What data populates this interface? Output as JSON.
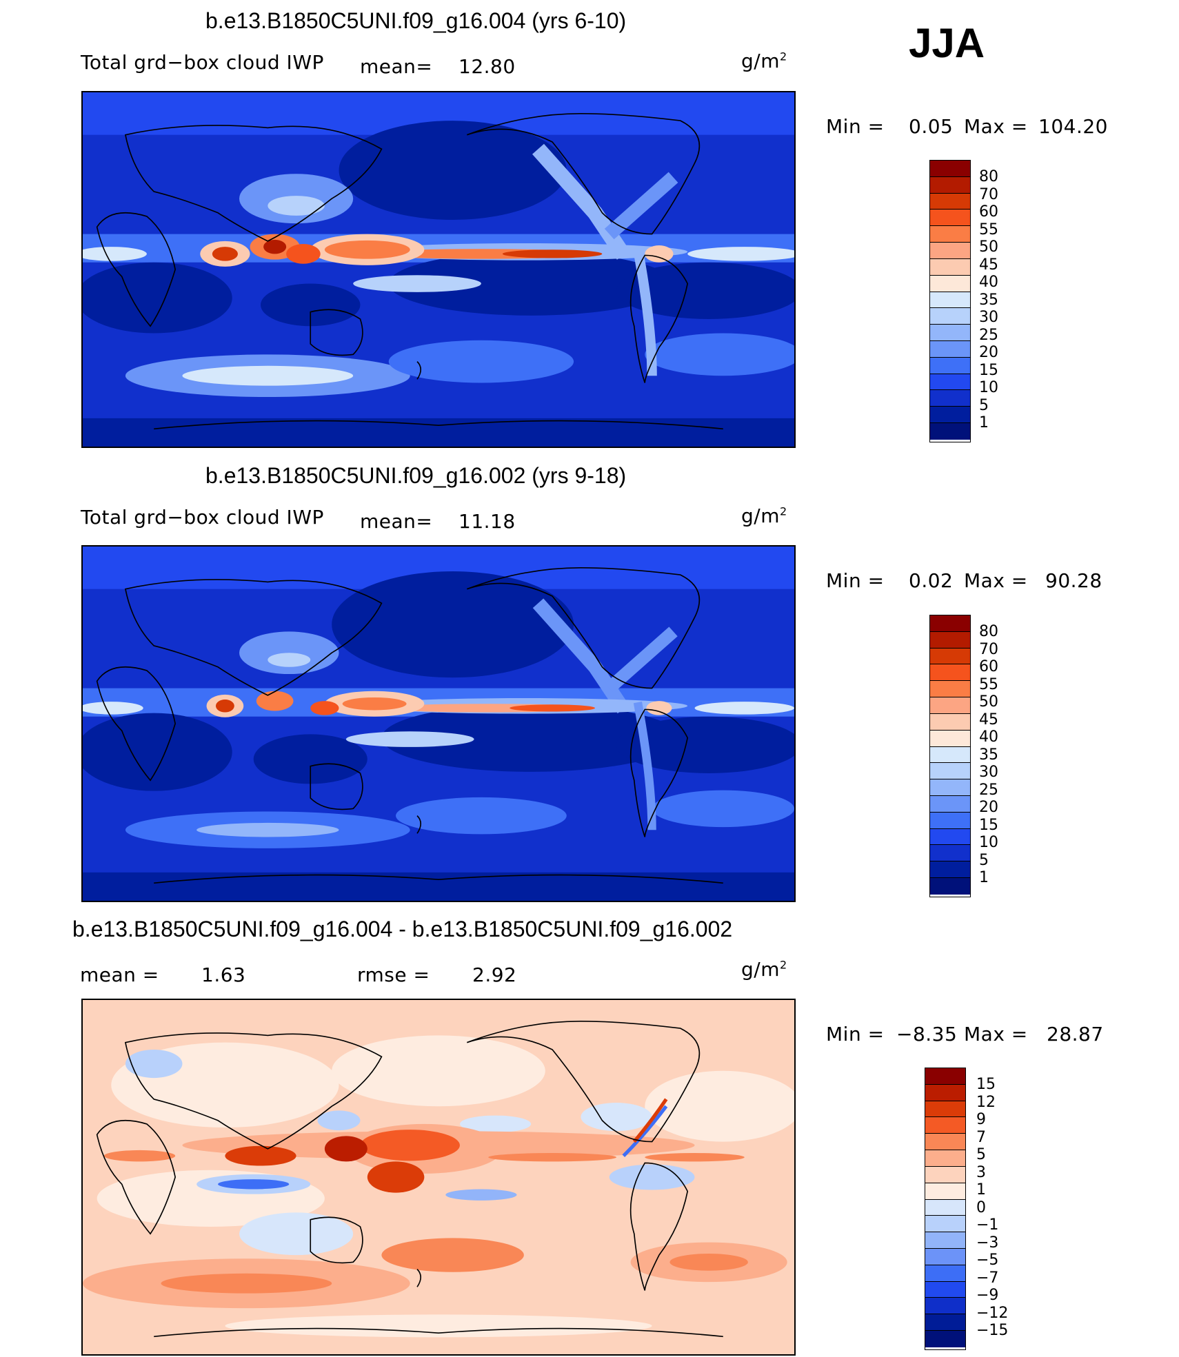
{
  "season": "JJA",
  "palette_main": [
    "#8a0000",
    "#b31b00",
    "#d63a05",
    "#f5531d",
    "#fa7d45",
    "#fca583",
    "#fccbb1",
    "#fde8d9",
    "#d6e8fb",
    "#b7d2fb",
    "#93b6fa",
    "#6b95f8",
    "#3e70f7",
    "#2249f0",
    "#1130cc",
    "#001e9e",
    "#00117a"
  ],
  "palette_diff": [
    "#8a0000",
    "#bb1d00",
    "#db3c08",
    "#f45a25",
    "#f98756",
    "#fcae8c",
    "#fdd3bd",
    "#feece0",
    "#d7e6fb",
    "#b8d1fb",
    "#92b4f9",
    "#6c93f8",
    "#3d6ef6",
    "#214aef",
    "#0f2fc9",
    "#001c97",
    "#00117a"
  ],
  "panels": [
    {
      "title": "b.e13.B1850C5UNI.f09_g16.004 (yrs 6-10)",
      "variable": "Total grd−box cloud IWP",
      "mean_label": "mean=",
      "mean_value": "12.80",
      "units": "g/m",
      "units_sup": "2",
      "min_label": "Min  =",
      "min_value": "0.05",
      "max_label": "Max  =",
      "max_value": "104.20",
      "levels": [
        "80",
        "70",
        "60",
        "55",
        "50",
        "45",
        "40",
        "35",
        "30",
        "25",
        "20",
        "15",
        "10",
        "5",
        "1"
      ]
    },
    {
      "title": "b.e13.B1850C5UNI.f09_g16.002 (yrs 9-18)",
      "variable": "Total grd−box cloud IWP",
      "mean_label": "mean=",
      "mean_value": "11.18",
      "units": "g/m",
      "units_sup": "2",
      "min_label": "Min  =",
      "min_value": "0.02",
      "max_label": "Max  =",
      "max_value": "90.28",
      "levels": [
        "80",
        "70",
        "60",
        "55",
        "50",
        "45",
        "40",
        "35",
        "30",
        "25",
        "20",
        "15",
        "10",
        "5",
        "1"
      ]
    },
    {
      "title": "b.e13.B1850C5UNI.f09_g16.004 - b.e13.B1850C5UNI.f09_g16.002",
      "mean_label": "mean  =",
      "mean_value": "1.63",
      "rmse_label": "rmse  =",
      "rmse_value": "2.92",
      "units": "g/m",
      "units_sup": "2",
      "min_label": "Min  =",
      "min_value": "−8.35",
      "max_label": "Max  =",
      "max_value": "28.87",
      "levels": [
        "15",
        "12",
        "9",
        "7",
        "5",
        "3",
        "1",
        "0",
        "−1",
        "−3",
        "−5",
        "−7",
        "−9",
        "−12",
        "−15"
      ]
    }
  ]
}
